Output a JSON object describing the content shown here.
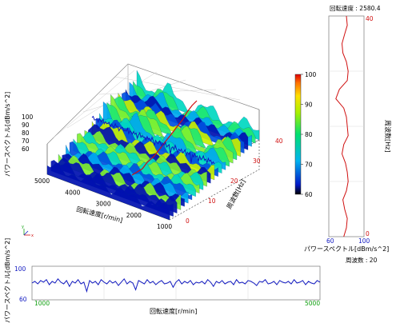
{
  "chart_data": [
    {
      "type": "surface",
      "xlabel": "回転速度[r/min]",
      "ylabel": "周波数[Hz]",
      "zlabel": "パワースペクトル[dBm/s^2]",
      "x_range": [
        1000,
        5000
      ],
      "y_range": [
        0,
        40
      ],
      "z_range": [
        60,
        100
      ],
      "x_ticks": [
        "5000",
        "4000",
        "3000",
        "2000",
        "1000"
      ],
      "y_ticks": [
        "0",
        "10",
        "20",
        "30",
        "40"
      ],
      "z_ticks": [
        "100",
        "90",
        "80",
        "70",
        "60"
      ],
      "colorbar": {
        "min": 60,
        "max": 100,
        "ticks": [
          "100",
          "90",
          "80",
          "70",
          "60"
        ]
      },
      "cut_line_rpm": {
        "name": "rpm-cut",
        "x": 2580.4,
        "color": "#d01010"
      },
      "cut_line_freq": {
        "name": "freq-cut",
        "y": 20,
        "color": "#1018c0"
      }
    },
    {
      "type": "line",
      "title": "回転速度 : 2580.4",
      "xlabel": "パワースペクトル[dBm/s^2]",
      "ylabel": "周波数[Hz]",
      "xlim": [
        60,
        100
      ],
      "ylim": [
        0,
        40
      ],
      "x_ticks": [
        "60",
        "100"
      ],
      "y_ticks": [
        "40",
        "0"
      ],
      "color": "#d01010",
      "series": [
        {
          "x": [
            77,
            80,
            81,
            78,
            76,
            80,
            82,
            81,
            79,
            75,
            77,
            82,
            81,
            80,
            77,
            68,
            72,
            81,
            82,
            80,
            76,
            75,
            78,
            81,
            80
          ],
          "y": [
            0,
            1.6,
            3.3,
            5,
            6.7,
            8.3,
            10,
            11.7,
            13.3,
            15,
            16.7,
            18.3,
            20,
            21.7,
            23.3,
            25,
            26.7,
            28.3,
            30,
            31.7,
            33.3,
            35,
            36.7,
            38.3,
            40
          ]
        }
      ]
    },
    {
      "type": "line",
      "title": "周波数 : 20",
      "xlabel": "回転速度[r/min]",
      "ylabel": "パワースペクトル[dBm/s^2]",
      "xlim": [
        1000,
        5000
      ],
      "ylim": [
        60,
        100
      ],
      "x_ticks": [
        "1000",
        "5000"
      ],
      "y_ticks": [
        "100",
        "60"
      ],
      "color": "#1018c0",
      "series": [
        {
          "x": [
            1000,
            1040,
            1080,
            1120,
            1160,
            1200,
            1240,
            1280,
            1320,
            1360,
            1400,
            1440,
            1480,
            1520,
            1560,
            1600,
            1640,
            1680,
            1720,
            1760,
            1800,
            1840,
            1880,
            1920,
            1960,
            2000,
            2040,
            2080,
            2120,
            2160,
            2200,
            2240,
            2280,
            2320,
            2360,
            2400,
            2440,
            2480,
            2520,
            2560,
            2600,
            2640,
            2680,
            2720,
            2760,
            2800,
            2840,
            2880,
            2920,
            2960,
            3000,
            3040,
            3080,
            3120,
            3160,
            3200,
            3240,
            3280,
            3320,
            3360,
            3400,
            3440,
            3480,
            3520,
            3560,
            3600,
            3640,
            3680,
            3720,
            3760,
            3800,
            3840,
            3880,
            3920,
            3960,
            4000,
            4040,
            4080,
            4120,
            4160,
            4200,
            4240,
            4280,
            4320,
            4360,
            4400,
            4440,
            4480,
            4520,
            4560,
            4600,
            4640,
            4680,
            4720,
            4760,
            4800,
            4840,
            4880,
            4920,
            4960,
            5000
          ],
          "y": [
            80,
            82,
            79,
            83,
            81,
            84,
            78,
            82,
            80,
            85,
            81,
            79,
            83,
            76,
            82,
            80,
            84,
            79,
            81,
            70,
            83,
            80,
            82,
            78,
            84,
            81,
            79,
            83,
            80,
            82,
            77,
            81,
            85,
            79,
            82,
            80,
            72,
            83,
            81,
            79,
            84,
            80,
            82,
            78,
            81,
            83,
            79,
            80,
            82,
            75,
            81,
            84,
            79,
            82,
            80,
            83,
            78,
            81,
            80,
            82,
            79,
            84,
            81,
            76,
            82,
            80,
            83,
            79,
            81,
            82,
            78,
            84,
            80,
            81,
            79,
            83,
            82,
            80,
            77,
            82,
            81,
            84,
            79,
            80,
            82,
            78,
            83,
            81,
            80,
            82,
            79,
            84,
            80,
            81,
            83,
            78,
            82,
            80,
            79,
            83,
            81
          ]
        }
      ]
    }
  ]
}
